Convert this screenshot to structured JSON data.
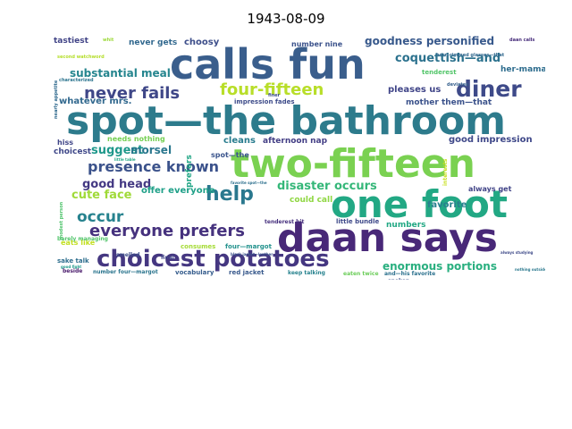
{
  "title": "1943-08-09",
  "words": [
    {
      "text": "spot—the bathroom",
      "color": "#2d7b8c"
    },
    {
      "text": "calls fun",
      "color": "#3a5e8c"
    },
    {
      "text": "two-fifteen",
      "color": "#7ad151"
    },
    {
      "text": "daan says",
      "color": "#482878"
    },
    {
      "text": "one foot",
      "color": "#22a884"
    },
    {
      "text": "choicest potatoes",
      "color": "#453781"
    },
    {
      "text": "diner",
      "color": "#3e4a89"
    },
    {
      "text": "four-fifteen",
      "color": "#b8de29"
    },
    {
      "text": "never fails",
      "color": "#3f4788"
    },
    {
      "text": "everyone prefers",
      "color": "#46327e"
    },
    {
      "text": "presence known",
      "color": "#3b528b"
    },
    {
      "text": "help",
      "color": "#2a788e"
    },
    {
      "text": "occur",
      "color": "#26828e"
    },
    {
      "text": "goodness personified",
      "color": "#38598c"
    },
    {
      "text": "coquettish—and",
      "color": "#2c728e"
    },
    {
      "text": "substantial meal",
      "color": "#25858e"
    },
    {
      "text": "suggest",
      "color": "#1f988b"
    },
    {
      "text": "cute face",
      "color": "#a0da39"
    },
    {
      "text": "disaster occurs",
      "color": "#35b779"
    },
    {
      "text": "enormous portions",
      "color": "#29af7f"
    },
    {
      "text": "good head",
      "color": "#443983"
    },
    {
      "text": "morsel",
      "color": "#2a778e"
    },
    {
      "text": "choosy",
      "color": "#3d4e8a"
    },
    {
      "text": "tastiest",
      "color": "#414487"
    },
    {
      "text": "never gets",
      "color": "#31688e"
    },
    {
      "text": "number nine",
      "color": "#3b528b"
    },
    {
      "text": "her-mama",
      "color": "#2e6d8e"
    },
    {
      "text": "tenderest",
      "color": "#52c569"
    },
    {
      "text": "pleases us",
      "color": "#404588"
    },
    {
      "text": "whatever mrs.",
      "color": "#31688e"
    },
    {
      "text": "mother them—that",
      "color": "#3b528b"
    },
    {
      "text": "impression fades",
      "color": "#3e4c8a"
    },
    {
      "text": "good impression",
      "color": "#3f4889"
    },
    {
      "text": "cleans",
      "color": "#287c8e"
    },
    {
      "text": "afternoon nap",
      "color": "#433e85"
    },
    {
      "text": "needs nothing",
      "color": "#75d054"
    },
    {
      "text": "choicest",
      "color": "#3f4889"
    },
    {
      "text": "hiss",
      "color": "#404688"
    },
    {
      "text": "spot—the",
      "color": "#3a548c"
    },
    {
      "text": "offer everyone",
      "color": "#1fa088"
    },
    {
      "text": "could call",
      "color": "#90d743"
    },
    {
      "text": "always get",
      "color": "#414487"
    },
    {
      "text": "favorite",
      "color": "#27808e"
    },
    {
      "text": "numbers",
      "color": "#22a884"
    },
    {
      "text": "eats like",
      "color": "#c2df23"
    },
    {
      "text": "four—margot",
      "color": "#21918c"
    },
    {
      "text": "consumes",
      "color": "#a5db36"
    },
    {
      "text": "prefers",
      "color": "#21a685"
    },
    {
      "text": "little bundle",
      "color": "#3e4989"
    },
    {
      "text": "tenderest bit",
      "color": "#46307e"
    },
    {
      "text": "sake talk",
      "color": "#2e6e8e"
    },
    {
      "text": "smelled",
      "color": "#3d4d8a"
    },
    {
      "text": "beside",
      "color": "#48186a"
    },
    {
      "text": "number four—margot",
      "color": "#2b758e"
    },
    {
      "text": "vocabulary",
      "color": "#365d8d"
    },
    {
      "text": "red jacket",
      "color": "#38598c"
    },
    {
      "text": "keep talking",
      "color": "#26828e"
    },
    {
      "text": "eaten twice",
      "color": "#6ccd5a"
    },
    {
      "text": "spoken",
      "color": "#3b528b"
    },
    {
      "text": "and—his favorite",
      "color": "#2c718e"
    },
    {
      "text": "horn-rimmed glasses—that",
      "color": "#31688e"
    },
    {
      "text": "barely managing",
      "color": "#50c46a"
    },
    {
      "text": "whit",
      "color": "#9dd93b"
    },
    {
      "text": "characterized",
      "color": "#2b748e"
    },
    {
      "text": "finer",
      "color": "#3d4e8a"
    },
    {
      "text": "deviates",
      "color": "#355f8d"
    },
    {
      "text": "final",
      "color": "#404588"
    },
    {
      "text": "interests",
      "color": "#c8e020"
    },
    {
      "text": "second watchword",
      "color": "#b5de2b"
    },
    {
      "text": "daan calls",
      "color": "#472d7b"
    },
    {
      "text": "nearly appetite",
      "color": "#306a8e"
    },
    {
      "text": "black jacket—leather",
      "color": "#3b528b"
    },
    {
      "text": "favorite spot—the",
      "color": "#2d708e"
    },
    {
      "text": "always studying",
      "color": "#3e4a89"
    },
    {
      "text": "little table",
      "color": "#22a785"
    },
    {
      "text": "good fight",
      "color": "#1f9a8a"
    },
    {
      "text": "nothing outside",
      "color": "#2a788e"
    },
    {
      "text": "modest person",
      "color": "#4ec36b"
    }
  ]
}
